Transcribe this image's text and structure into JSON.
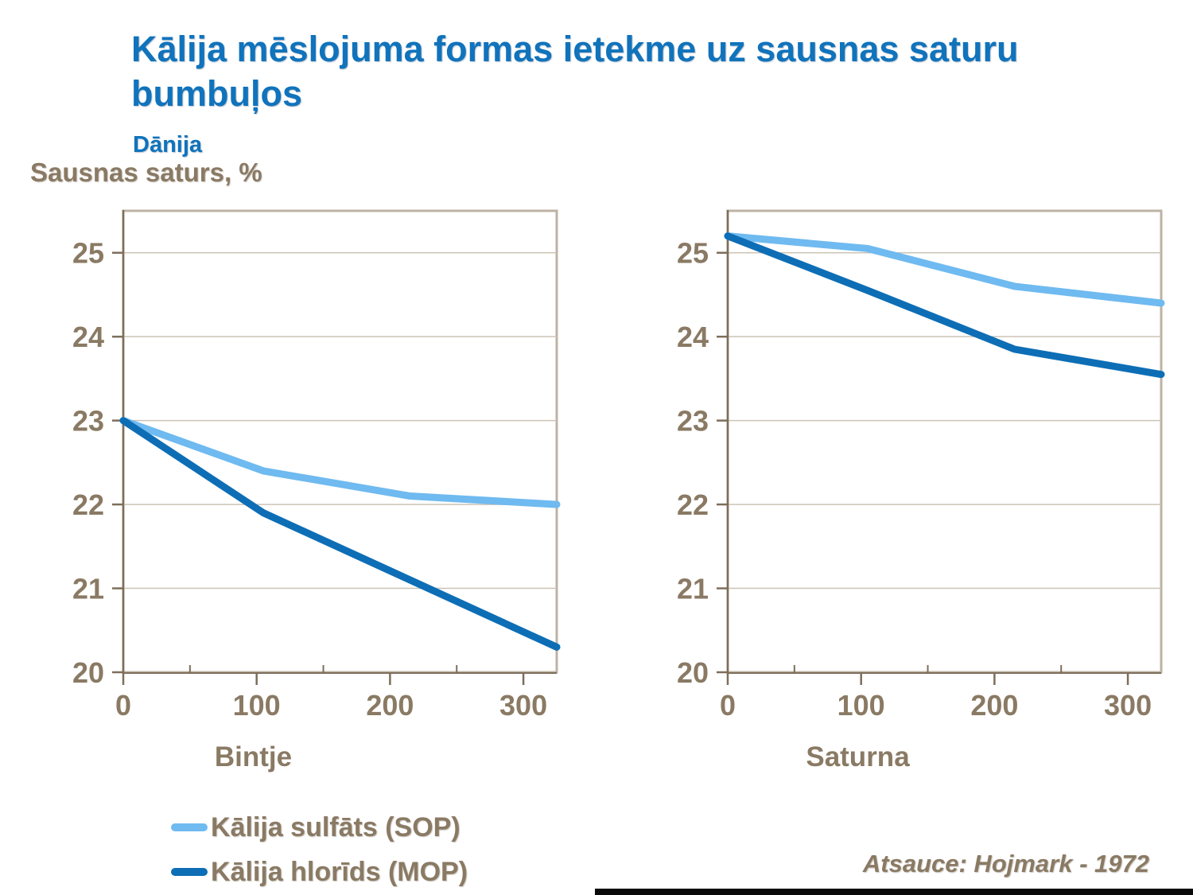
{
  "header": {
    "title": "Kālija mēslojuma formas ietekme uz sausnas saturu\nbumbuļos",
    "subtitle": "Dānija",
    "y_axis_label": "Sausnas saturs, %"
  },
  "legend": {
    "items": [
      {
        "label": "Kālija sulfāts (SOP)",
        "color": "#6FBAF0"
      },
      {
        "label": "Kālija hlorīds (MOP)",
        "color": "#0D6EB6"
      }
    ]
  },
  "footer": {
    "reference": "Atsauce: Hojmark - 1972"
  },
  "colors": {
    "title_blue": "#1073BC",
    "text_brown": "#8A7A64",
    "axis": "#7D6E5B",
    "grid": "#CCC3B5",
    "frame": "#BDB3A3",
    "background": "#FFFFFF",
    "black_bar": "#0A0A0A"
  },
  "chart_data": [
    {
      "type": "line",
      "title": "Bintje",
      "x": [
        0,
        105,
        215,
        325
      ],
      "series": [
        {
          "name": "Kālija sulfāts (SOP)",
          "color": "#6FBAF0",
          "values": [
            23.0,
            22.4,
            22.1,
            22.0
          ]
        },
        {
          "name": "Kālija hlorīds (MOP)",
          "color": "#0D6EB6",
          "values": [
            23.0,
            21.9,
            21.1,
            20.3
          ]
        }
      ],
      "xlim": [
        0,
        325
      ],
      "ylim": [
        20,
        25.5
      ],
      "yticks": [
        20,
        21,
        22,
        23,
        24,
        25
      ],
      "xticks_major": [
        0,
        100,
        200,
        300
      ],
      "xticks_minor": [
        50,
        150,
        250
      ],
      "grid": true,
      "legend_position": "below-left"
    },
    {
      "type": "line",
      "title": "Saturna",
      "x": [
        0,
        105,
        215,
        325
      ],
      "series": [
        {
          "name": "Kālija sulfāts (SOP)",
          "color": "#6FBAF0",
          "values": [
            25.2,
            25.05,
            24.6,
            24.4
          ]
        },
        {
          "name": "Kālija hlorīds (MOP)",
          "color": "#0D6EB6",
          "values": [
            25.2,
            24.55,
            23.85,
            23.55
          ]
        }
      ],
      "xlim": [
        0,
        325
      ],
      "ylim": [
        20,
        25.5
      ],
      "yticks": [
        20,
        21,
        22,
        23,
        24,
        25
      ],
      "xticks_major": [
        0,
        100,
        200,
        300
      ],
      "xticks_minor": [
        50,
        150,
        250
      ],
      "grid": true,
      "legend_position": "below-left"
    }
  ]
}
